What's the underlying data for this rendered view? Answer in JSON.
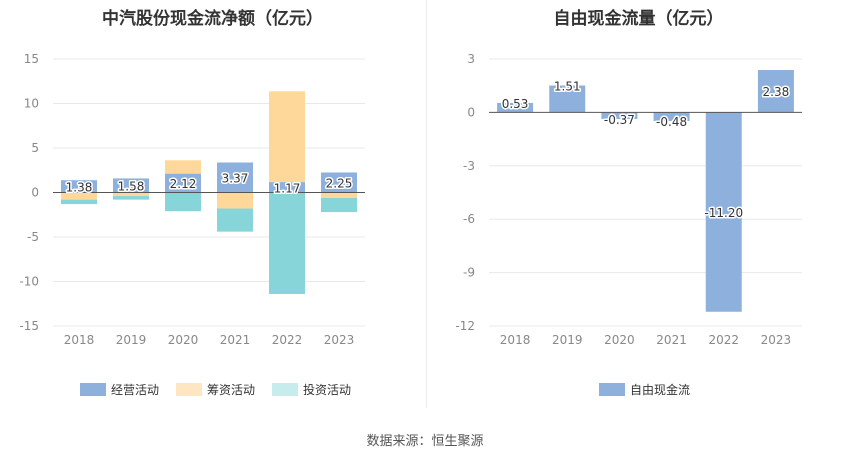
{
  "chart_data": [
    {
      "type": "bar",
      "title": "中汽股份现金流净额（亿元）",
      "categories": [
        "2018",
        "2019",
        "2020",
        "2021",
        "2022",
        "2023"
      ],
      "ylim": [
        -15,
        15
      ],
      "yticks": [
        15,
        10,
        5,
        0,
        -5,
        -10,
        -15
      ],
      "stacked": true,
      "series": [
        {
          "name": "经营活动",
          "color": "#8eb0dd",
          "values": [
            1.38,
            1.58,
            2.12,
            3.37,
            1.17,
            2.25
          ],
          "labels": [
            "1.38",
            "1.58",
            "2.12",
            "3.37",
            "1.17",
            "2.25"
          ]
        },
        {
          "name": "筹资活动",
          "color": "#fed89b",
          "values": [
            -0.8,
            -0.4,
            1.5,
            -1.8,
            10.2,
            -0.6
          ]
        },
        {
          "name": "投资活动",
          "color": "#87d5d9",
          "values": [
            -0.5,
            -0.4,
            -2.1,
            -2.6,
            -11.4,
            -1.6
          ]
        }
      ],
      "legend": {
        "position": "bottom",
        "colors": [
          "#8eb0dd",
          "#ffe6c2",
          "#c6ecee"
        ]
      },
      "grid": true
    },
    {
      "type": "bar",
      "title": "自由现金流量（亿元）",
      "categories": [
        "2018",
        "2019",
        "2020",
        "2021",
        "2022",
        "2023"
      ],
      "ylim": [
        -12,
        3
      ],
      "yticks": [
        3,
        0,
        -3,
        -6,
        -9,
        -12
      ],
      "series": [
        {
          "name": "自由现金流",
          "color": "#8eb0dd",
          "values": [
            0.53,
            1.51,
            -0.37,
            -0.48,
            -11.2,
            2.38
          ],
          "labels": [
            "0.53",
            "1.51",
            "-0.37",
            "-0.48",
            "-11.20",
            "2.38"
          ]
        }
      ],
      "legend": {
        "position": "bottom",
        "colors": [
          "#8eb0dd"
        ]
      },
      "grid": true
    }
  ],
  "footer": {
    "source": "数据来源：恒生聚源"
  }
}
